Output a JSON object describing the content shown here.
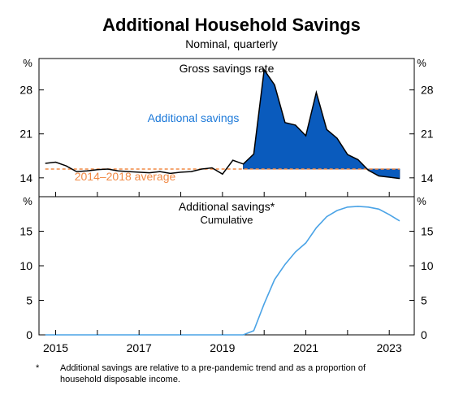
{
  "title": "Additional Household Savings",
  "subtitle": "Nominal, quarterly",
  "footnote": {
    "marker": "*",
    "text": "Additional savings are relative to a pre-pandemic trend and as a proportion of household disposable income."
  },
  "colors": {
    "rate_line": "#000000",
    "additional_fill": "#0a5bbd",
    "average_line": "#f28a45",
    "cumulative_line": "#4aa3e6"
  },
  "chart_data": [
    {
      "type": "area",
      "title": "Gross savings rate",
      "unit_label": "%",
      "ylim": [
        11,
        33
      ],
      "yticks": [
        14,
        21,
        28
      ],
      "ytick_labels": [
        "14",
        "21",
        "28"
      ],
      "average": {
        "label": "2014–2018 average",
        "value": 15.4
      },
      "fill_label": "Additional savings",
      "series": [
        {
          "name": "Gross savings rate",
          "x": [
            2014.75,
            2015.0,
            2015.25,
            2015.5,
            2015.75,
            2016.0,
            2016.25,
            2016.5,
            2016.75,
            2017.0,
            2017.25,
            2017.5,
            2017.75,
            2018.0,
            2018.25,
            2018.5,
            2018.75,
            2019.0,
            2019.25,
            2019.5,
            2019.75,
            2020.0,
            2020.25,
            2020.5,
            2020.75,
            2021.0,
            2021.25,
            2021.5,
            2021.75,
            2022.0,
            2022.25,
            2022.5,
            2022.75,
            2023.0,
            2023.25
          ],
          "values": [
            16.3,
            16.5,
            15.9,
            15.0,
            15.1,
            15.3,
            15.4,
            15.1,
            15.0,
            14.9,
            14.8,
            15.0,
            14.7,
            14.9,
            15.0,
            15.4,
            15.6,
            14.6,
            16.8,
            16.2,
            17.8,
            31.2,
            28.8,
            22.8,
            22.4,
            20.7,
            27.6,
            21.7,
            20.3,
            17.7,
            16.9,
            15.2,
            14.3,
            14.1,
            13.9
          ]
        }
      ]
    },
    {
      "type": "line",
      "title": "Additional savings*",
      "subtitle": "Cumulative",
      "unit_label": "%",
      "ylim": [
        0,
        20
      ],
      "yticks": [
        0,
        5,
        10,
        15
      ],
      "ytick_labels": [
        "0",
        "5",
        "10",
        "15"
      ],
      "xlim": [
        2014.6,
        2023.6
      ],
      "x_tick_labels": [
        "2015",
        "2017",
        "2019",
        "2021",
        "2023"
      ],
      "x_tick_values": [
        2015,
        2017,
        2019,
        2021,
        2023
      ],
      "series": [
        {
          "name": "Additional savings",
          "x": [
            2014.75,
            2019.5,
            2019.75,
            2020.0,
            2020.25,
            2020.5,
            2020.75,
            2021.0,
            2021.25,
            2021.5,
            2021.75,
            2022.0,
            2022.25,
            2022.5,
            2022.75,
            2023.0,
            2023.25
          ],
          "values": [
            0,
            0,
            0.6,
            4.5,
            8.0,
            10.2,
            12.0,
            13.3,
            15.5,
            17.1,
            18.0,
            18.5,
            18.6,
            18.5,
            18.2,
            17.4,
            16.5
          ]
        }
      ]
    }
  ]
}
